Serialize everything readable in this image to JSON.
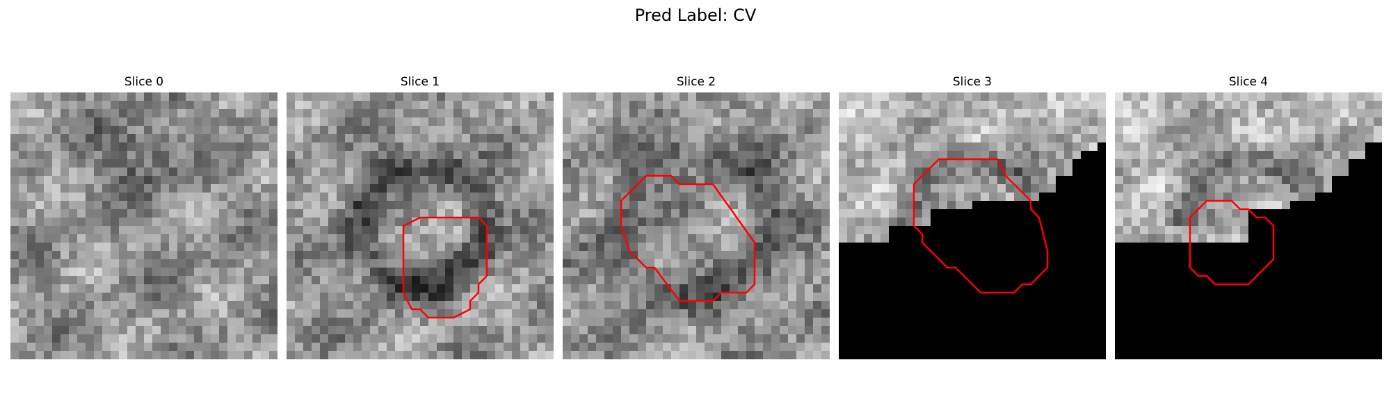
{
  "figure": {
    "title": "Pred Label: CV"
  },
  "panels": [
    {
      "title": "Slice 0",
      "seed": 11,
      "shade": "none",
      "contour": null
    },
    {
      "title": "Slice 1",
      "seed": 23,
      "shade": "ring",
      "contour": [
        [
          16,
          15
        ],
        [
          23,
          15
        ],
        [
          24,
          16
        ],
        [
          24,
          22
        ],
        [
          23,
          23
        ],
        [
          23,
          24
        ],
        [
          22,
          25
        ],
        [
          22,
          26
        ],
        [
          20,
          27
        ],
        [
          17,
          27
        ],
        [
          16,
          26
        ],
        [
          15,
          26
        ],
        [
          14,
          24
        ],
        [
          14,
          16
        ]
      ]
    },
    {
      "title": "Slice 2",
      "seed": 37,
      "shade": "ring-large",
      "contour": [
        [
          10,
          10
        ],
        [
          13,
          10
        ],
        [
          14,
          11
        ],
        [
          18,
          11
        ],
        [
          23,
          18
        ],
        [
          23,
          23
        ],
        [
          22,
          24
        ],
        [
          19,
          24
        ],
        [
          18,
          25
        ],
        [
          14,
          25
        ],
        [
          11,
          21
        ],
        [
          10,
          21
        ],
        [
          9,
          20
        ],
        [
          8,
          19
        ],
        [
          7,
          16
        ],
        [
          7,
          13
        ],
        [
          8,
          12
        ],
        [
          9,
          11
        ]
      ]
    },
    {
      "title": "Slice 3",
      "seed": 41,
      "shade": "stair-top",
      "contour": [
        [
          14,
          8
        ],
        [
          19,
          8
        ],
        [
          20,
          10
        ],
        [
          21,
          11
        ],
        [
          22,
          12
        ],
        [
          23,
          13
        ],
        [
          23,
          14
        ],
        [
          24,
          15
        ],
        [
          25,
          19
        ],
        [
          25,
          21
        ],
        [
          24,
          22
        ],
        [
          23,
          23
        ],
        [
          22,
          23
        ],
        [
          21,
          24
        ],
        [
          17,
          24
        ],
        [
          16,
          23
        ],
        [
          15,
          22
        ],
        [
          14,
          21
        ],
        [
          13,
          21
        ],
        [
          12,
          20
        ],
        [
          11,
          19
        ],
        [
          10,
          18
        ],
        [
          10,
          17
        ],
        [
          9,
          16
        ],
        [
          9,
          11
        ],
        [
          10,
          10
        ],
        [
          11,
          9
        ],
        [
          12,
          8
        ]
      ]
    },
    {
      "title": "Slice 4",
      "seed": 53,
      "shade": "stair-top-low",
      "contour": [
        [
          11,
          13
        ],
        [
          14,
          13
        ],
        [
          15,
          14
        ],
        [
          16,
          14
        ],
        [
          17,
          15
        ],
        [
          18,
          15
        ],
        [
          19,
          16
        ],
        [
          19,
          20
        ],
        [
          18,
          21
        ],
        [
          17,
          22
        ],
        [
          16,
          23
        ],
        [
          12,
          23
        ],
        [
          11,
          22
        ],
        [
          10,
          22
        ],
        [
          9,
          21
        ],
        [
          9,
          15
        ],
        [
          10,
          14
        ]
      ]
    }
  ]
}
